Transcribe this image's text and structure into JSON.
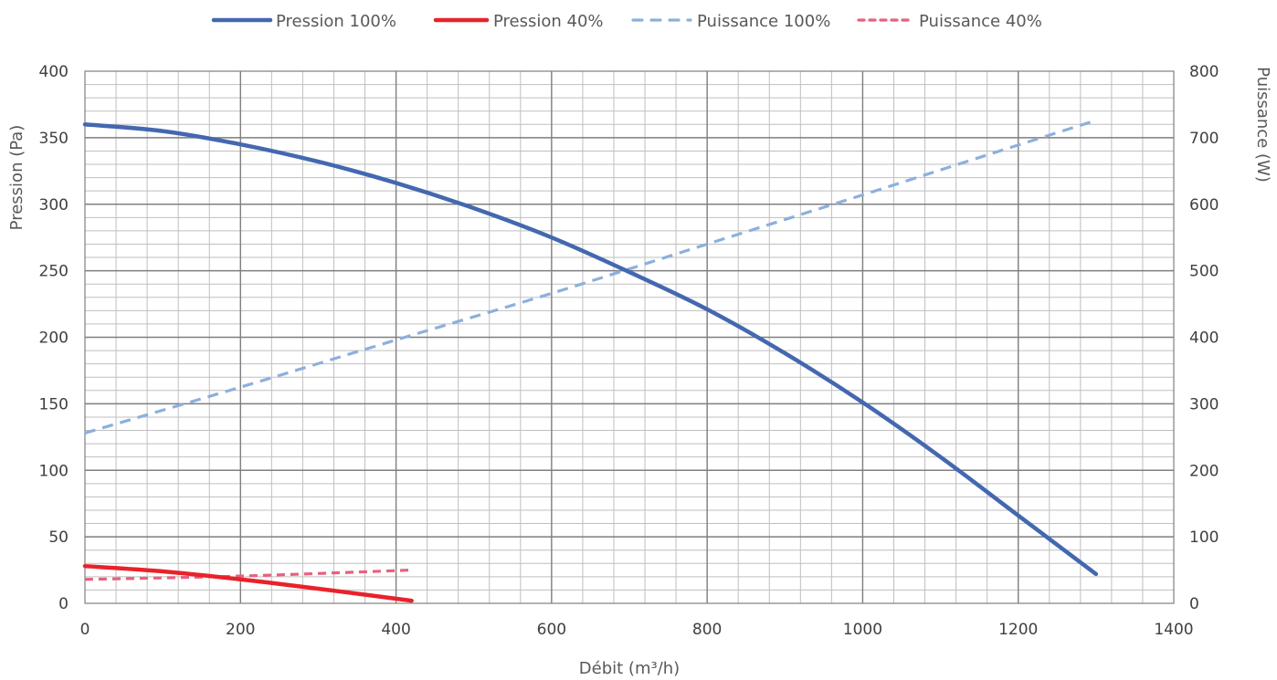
{
  "chart_data": {
    "type": "line",
    "xlabel": "Débit (m³/h)",
    "ylabel": "Pression (Pa)",
    "y2label": "Puissance (W)",
    "xlim": [
      0,
      1400
    ],
    "ylim": [
      0,
      400
    ],
    "y2lim": [
      0,
      800
    ],
    "x_ticks": [
      "0",
      "200",
      "400",
      "600",
      "800",
      "1000",
      "1200",
      "1400"
    ],
    "y_ticks": [
      "0",
      "50",
      "100",
      "150",
      "200",
      "250",
      "300",
      "350",
      "400"
    ],
    "y2_ticks": [
      "0",
      "100",
      "200",
      "300",
      "400",
      "500",
      "600",
      "700",
      "800"
    ],
    "grid": true,
    "legend_position": "top-center",
    "series": [
      {
        "name": "Pression 100%",
        "axis": "left",
        "color": "#4468B0",
        "style": "solid",
        "x": [
          0,
          100,
          200,
          300,
          400,
          500,
          600,
          700,
          800,
          900,
          1000,
          1100,
          1200,
          1300
        ],
        "values": [
          360,
          355,
          345,
          332,
          316,
          297,
          275,
          249,
          221,
          188,
          151,
          110,
          66,
          22
        ]
      },
      {
        "name": "Pression 40%",
        "axis": "left",
        "color": "#E8222B",
        "style": "solid",
        "x": [
          0,
          100,
          200,
          300,
          420
        ],
        "values": [
          28,
          24,
          18,
          11,
          2
        ]
      },
      {
        "name": "Puissance 100%",
        "axis": "right",
        "color": "#8CB0DC",
        "style": "dashed",
        "x": [
          0,
          200,
          400,
          600,
          800,
          1000,
          1200,
          1300
        ],
        "values": [
          256,
          325,
          396,
          466,
          540,
          614,
          689,
          726
        ]
      },
      {
        "name": "Puissance 40%",
        "axis": "right",
        "color": "#E8607E",
        "style": "dashed",
        "x": [
          0,
          200,
          420
        ],
        "values": [
          36,
          41,
          50
        ]
      }
    ]
  }
}
